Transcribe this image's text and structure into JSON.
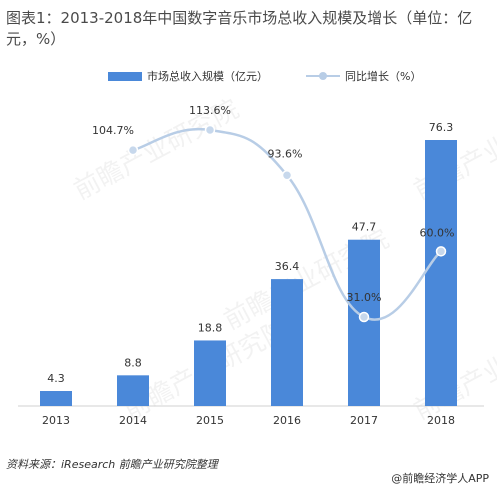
{
  "title": "图表1：2013-2018年中国数字音乐市场总收入规模及增长（单位：亿元，%）",
  "source": "资料来源：iResearch 前瞻产业研究院整理",
  "credit": "@前瞻经济学人APP",
  "watermark": "前瞻产业研究院",
  "colors": {
    "bar": "#4a88d9",
    "line": "#b8cde6",
    "point": "#c7d8ec"
  },
  "chart_data": {
    "type": "bar",
    "categories": [
      "2013",
      "2014",
      "2015",
      "2016",
      "2017",
      "2018"
    ],
    "series": [
      {
        "name": "市场总收入规模（亿元）",
        "type": "bar",
        "values": [
          4.3,
          8.8,
          18.8,
          36.4,
          47.7,
          76.3
        ],
        "labels": [
          "4.3",
          "8.8",
          "18.8",
          "36.4",
          "47.7",
          "76.3"
        ]
      },
      {
        "name": "同比增长（%）",
        "type": "line",
        "x": [
          "2014",
          "2015",
          "2016",
          "2017",
          "2018"
        ],
        "values": [
          104.7,
          113.6,
          93.6,
          31.0,
          60.0
        ],
        "labels": [
          "104.7%",
          "113.6%",
          "93.6%",
          "31.0%",
          "60.0%"
        ]
      }
    ],
    "bar_ylim": [
      0,
      80
    ],
    "line_ylim": [
      -40,
      120
    ],
    "grid": false,
    "legend_position": "top"
  }
}
